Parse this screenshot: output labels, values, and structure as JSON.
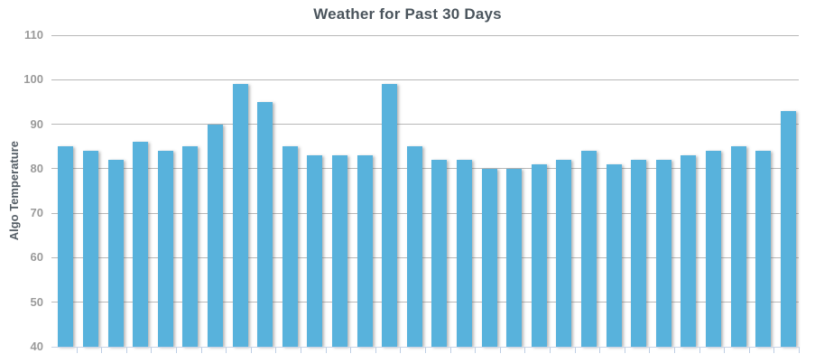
{
  "chart_data": {
    "type": "bar",
    "title": "Weather for Past 30 Days",
    "xlabel": "",
    "ylabel": "Algo Temperature",
    "values": [
      85,
      84,
      82,
      86,
      84,
      85,
      90,
      99,
      95,
      85,
      83,
      83,
      83,
      99,
      85,
      82,
      82,
      80,
      80,
      81,
      82,
      84,
      81,
      82,
      82,
      83,
      84,
      85,
      84,
      93
    ],
    "n_bars": 30,
    "ylim": [
      40,
      110
    ],
    "yticks": [
      40,
      50,
      60,
      70,
      80,
      90,
      100,
      110
    ],
    "x_tick_labels": "none",
    "legend": "none",
    "grid": "horizontal",
    "colors": {
      "bar": "#58b2dc",
      "gridline": "#b8b8b8",
      "axis_line": "#c9d4e6",
      "tick_label": "#9a9a9a",
      "title": "#4a545c",
      "axis_title": "#555e66",
      "background": "#ffffff"
    }
  }
}
